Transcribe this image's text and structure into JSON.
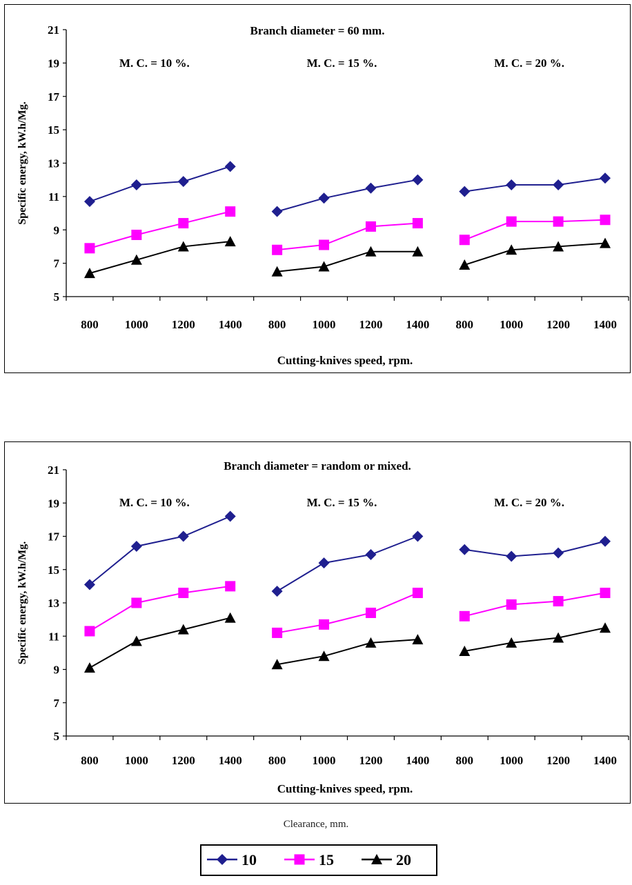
{
  "caption": "Clearance, mm.",
  "legend": {
    "entries": [
      {
        "label": "10",
        "color": "#1f1f8f",
        "marker": "diamond"
      },
      {
        "label": "15",
        "color": "#ff00ff",
        "marker": "square"
      },
      {
        "label": "20",
        "color": "#000000",
        "marker": "triangle"
      }
    ]
  },
  "chart_data": [
    {
      "type": "line",
      "title": "Branch diameter = 60 mm.",
      "xlabel": "Cutting-knives speed, rpm.",
      "ylabel": "Specific energy, kW.h/Mg.",
      "ylim": [
        5,
        21
      ],
      "yticks": [
        "5",
        "7",
        "9",
        "11",
        "13",
        "15",
        "17",
        "19",
        "21"
      ],
      "grid": false,
      "groups": [
        {
          "label": "M. C. = 10 %.",
          "categories": [
            "800",
            "1000",
            "1200",
            "1400"
          ],
          "series": [
            {
              "name": "10",
              "values": [
                10.7,
                11.7,
                11.9,
                12.8
              ]
            },
            {
              "name": "15",
              "values": [
                7.9,
                8.7,
                9.4,
                10.1
              ]
            },
            {
              "name": "20",
              "values": [
                6.4,
                7.2,
                8.0,
                8.3
              ]
            }
          ]
        },
        {
          "label": "M. C. = 15 %.",
          "categories": [
            "800",
            "1000",
            "1200",
            "1400"
          ],
          "series": [
            {
              "name": "10",
              "values": [
                10.1,
                10.9,
                11.5,
                12.0
              ]
            },
            {
              "name": "15",
              "values": [
                7.8,
                8.1,
                9.2,
                9.4
              ]
            },
            {
              "name": "20",
              "values": [
                6.5,
                6.8,
                7.7,
                7.7
              ]
            }
          ]
        },
        {
          "label": "M. C. = 20 %.",
          "categories": [
            "800",
            "1000",
            "1200",
            "1400"
          ],
          "series": [
            {
              "name": "10",
              "values": [
                11.3,
                11.7,
                11.7,
                12.1
              ]
            },
            {
              "name": "15",
              "values": [
                8.4,
                9.5,
                9.5,
                9.6
              ]
            },
            {
              "name": "20",
              "values": [
                6.9,
                7.8,
                8.0,
                8.2
              ]
            }
          ]
        }
      ]
    },
    {
      "type": "line",
      "title": "Branch diameter = random or mixed.",
      "xlabel": "Cutting-knives speed, rpm.",
      "ylabel": "Specific energy, kW.h/Mg.",
      "ylim": [
        5,
        21
      ],
      "yticks": [
        "5",
        "7",
        "9",
        "11",
        "13",
        "15",
        "17",
        "19",
        "21"
      ],
      "grid": false,
      "groups": [
        {
          "label": "M. C. = 10 %.",
          "categories": [
            "800",
            "1000",
            "1200",
            "1400"
          ],
          "series": [
            {
              "name": "10",
              "values": [
                14.1,
                16.4,
                17.0,
                18.2
              ]
            },
            {
              "name": "15",
              "values": [
                11.3,
                13.0,
                13.6,
                14.0
              ]
            },
            {
              "name": "20",
              "values": [
                9.1,
                10.7,
                11.4,
                12.1
              ]
            }
          ]
        },
        {
          "label": "M. C. = 15 %.",
          "categories": [
            "800",
            "1000",
            "1200",
            "1400"
          ],
          "series": [
            {
              "name": "10",
              "values": [
                13.7,
                15.4,
                15.9,
                17.0
              ]
            },
            {
              "name": "15",
              "values": [
                11.2,
                11.7,
                12.4,
                13.6
              ]
            },
            {
              "name": "20",
              "values": [
                9.3,
                9.8,
                10.6,
                10.8
              ]
            }
          ]
        },
        {
          "label": "M. C. = 20 %.",
          "categories": [
            "800",
            "1000",
            "1200",
            "1400"
          ],
          "series": [
            {
              "name": "10",
              "values": [
                16.2,
                15.8,
                16.0,
                16.7
              ]
            },
            {
              "name": "15",
              "values": [
                12.2,
                12.9,
                13.1,
                13.6
              ]
            },
            {
              "name": "20",
              "values": [
                10.1,
                10.6,
                10.9,
                11.5
              ]
            }
          ]
        }
      ]
    }
  ]
}
